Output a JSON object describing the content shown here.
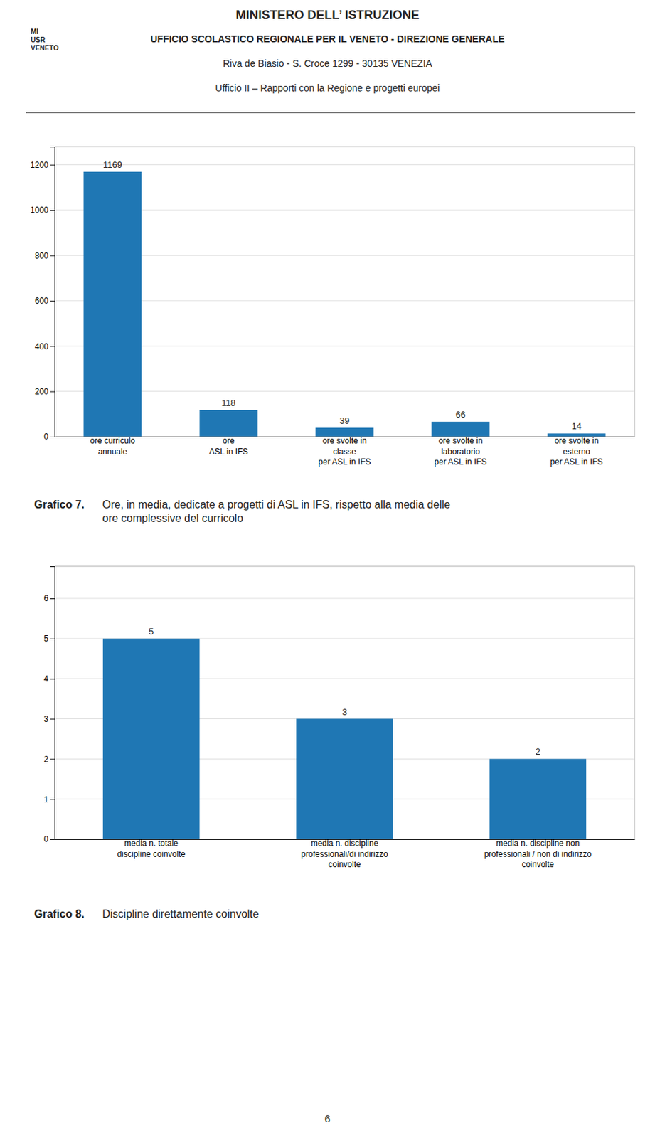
{
  "page": {
    "header": [
      "MINISTERO DELL’ ISTRUZIONE",
      "UFFICIO SCOLASTICO REGIONALE PER IL VENETO - DIREZIONE GENERALE",
      "Riva de Biasio  - S. Croce 1299 - 30135 VENEZIA",
      "Ufficio II – Rapporti con la Regione e progetti europei"
    ],
    "logo": "MI\nUSR\nVENETO",
    "page_number": "6"
  },
  "chart_data": [
    {
      "type": "bar",
      "title": "Grafico 7.",
      "subtitle": "Ore, in media, dedicate a progetti di ASL in IFS, rispetto alla media delle\nore complessive del curricolo",
      "categories": [
        "ore curriculo\nannuale",
        "ore\nASL in IFS",
        "ore svolte in\nclasse\nper ASL in IFS",
        "ore svolte in\nlaboratorio\nper ASL in IFS",
        "ore svolte in\nesterno\nper ASL in IFS"
      ],
      "values": [
        1169,
        118,
        39,
        66,
        14
      ],
      "ylim": [
        0,
        1280
      ],
      "yticks": [
        0,
        200,
        400,
        600,
        800,
        1000,
        1200
      ],
      "grid": true,
      "data_labels": true
    },
    {
      "type": "bar",
      "title": "Grafico 8.",
      "subtitle": "Discipline direttamente coinvolte",
      "categories": [
        "media n. totale\ndiscipline coinvolte",
        "media n. discipline\nprofessionali/di indirizzo\ncoinvolte",
        "media n. discipline non\nprofessionali / non di indirizzo\ncoinvolte"
      ],
      "values": [
        5,
        3,
        2
      ],
      "ylim": [
        0,
        6.8
      ],
      "yticks": [
        0,
        1,
        2,
        3,
        4,
        5,
        6
      ],
      "grid": true,
      "data_labels": true
    }
  ]
}
